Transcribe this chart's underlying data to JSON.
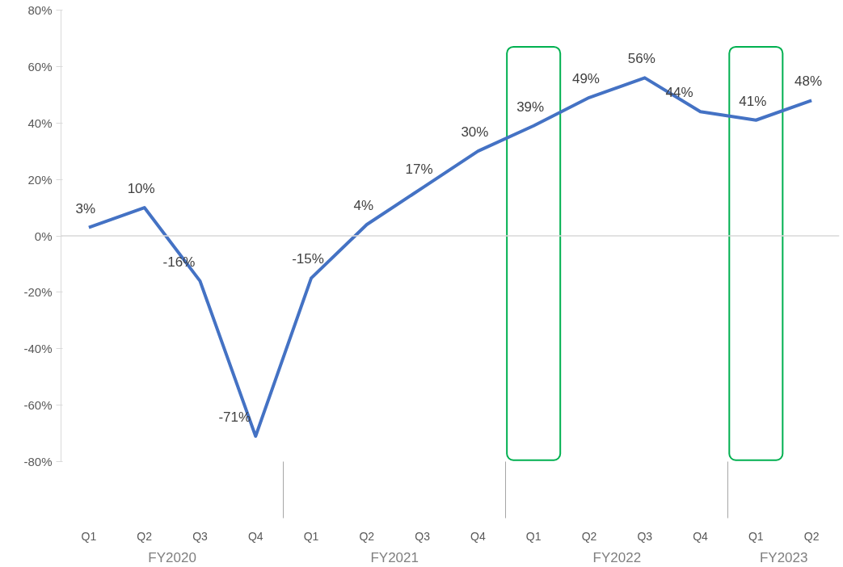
{
  "chart_data": {
    "type": "line",
    "categories": [
      "Q1",
      "Q2",
      "Q3",
      "Q4",
      "Q1",
      "Q2",
      "Q3",
      "Q4",
      "Q1",
      "Q2",
      "Q3",
      "Q4",
      "Q1",
      "Q2"
    ],
    "series": [
      {
        "color": "#4472c4",
        "values": [
          3,
          10,
          -16,
          -71,
          -15,
          4,
          17,
          30,
          39,
          49,
          56,
          44,
          41,
          48
        ],
        "value_labels": [
          "3%",
          "10%",
          "-16%",
          "-71%",
          "-15%",
          "4%",
          "17%",
          "30%",
          "39%",
          "49%",
          "56%",
          "44%",
          "41%",
          "48%"
        ]
      }
    ],
    "annotations": [
      "FY2020",
      "FY2021",
      "FY2022",
      "FY2023"
    ],
    "ylim": [
      -80,
      80
    ],
    "yticks": [
      {
        "value": -80,
        "label": "-80%"
      },
      {
        "value": -60,
        "label": "-60%"
      },
      {
        "value": -40,
        "label": "-40%"
      },
      {
        "value": -20,
        "label": "-20%"
      },
      {
        "value": 0,
        "label": "0%"
      },
      {
        "value": 20,
        "label": "20%"
      },
      {
        "value": 40,
        "label": "40%"
      },
      {
        "value": 60,
        "label": "60%"
      },
      {
        "value": 80,
        "label": "80%"
      }
    ],
    "ref_lines": [
      {
        "axis": "y",
        "value": 0,
        "color": "#d9d9d9"
      }
    ],
    "grid": false,
    "marker": "none",
    "line_style": "solid"
  }
}
